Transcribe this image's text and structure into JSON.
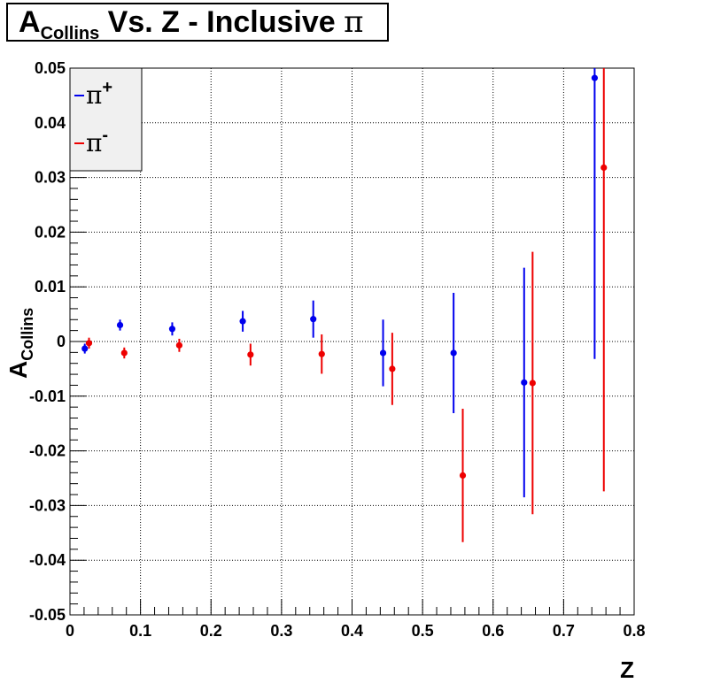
{
  "title": {
    "main": "A",
    "sub": "Collins",
    "rest": " Vs. Z - Inclusive ",
    "symbol": "π"
  },
  "chart_data": {
    "type": "scatter",
    "title": "ACollins Vs. Z - Inclusive π",
    "xlabel": "Z",
    "ylabel": {
      "main": "A",
      "sub": "Collins"
    },
    "xlim": [
      0,
      0.8
    ],
    "ylim": [
      -0.05,
      0.05
    ],
    "xticks": [
      0,
      0.1,
      0.2,
      0.3,
      0.4,
      0.5,
      0.6,
      0.7,
      0.8
    ],
    "xtick_labels": [
      "0",
      "0.1",
      "0.2",
      "0.3",
      "0.4",
      "0.5",
      "0.6",
      "0.7",
      "0.8"
    ],
    "yticks": [
      -0.05,
      -0.04,
      -0.03,
      -0.02,
      -0.01,
      0,
      0.01,
      0.02,
      0.03,
      0.04,
      0.05
    ],
    "ytick_labels": [
      "-0.05",
      "-0.04",
      "-0.03",
      "-0.02",
      "-0.01",
      "0",
      "0.01",
      "0.02",
      "0.03",
      "0.04",
      "0.05"
    ],
    "grid": true,
    "legend": {
      "placement": "top-left"
    },
    "series": [
      {
        "name": "π+",
        "color": "#0000ee",
        "x": [
          0.021,
          0.071,
          0.145,
          0.245,
          0.345,
          0.444,
          0.544,
          0.644,
          0.744
        ],
        "y": [
          -0.0013,
          0.003,
          0.0023,
          0.0037,
          0.0041,
          -0.0021,
          -0.0021,
          -0.0075,
          0.0482
        ],
        "err": [
          0.0009,
          0.001,
          0.0012,
          0.0019,
          0.0034,
          0.0061,
          0.011,
          0.021,
          0.0514
        ]
      },
      {
        "name": "π-",
        "color": "#ee0000",
        "x": [
          0.027,
          0.077,
          0.155,
          0.256,
          0.357,
          0.457,
          0.557,
          0.656,
          0.757
        ],
        "y": [
          -0.0003,
          -0.0021,
          -0.0007,
          -0.0024,
          -0.0023,
          -0.005,
          -0.0245,
          -0.0076,
          0.0318
        ],
        "err": [
          0.001,
          0.001,
          0.0012,
          0.002,
          0.0036,
          0.0066,
          0.0122,
          0.024,
          0.0592
        ]
      }
    ]
  }
}
